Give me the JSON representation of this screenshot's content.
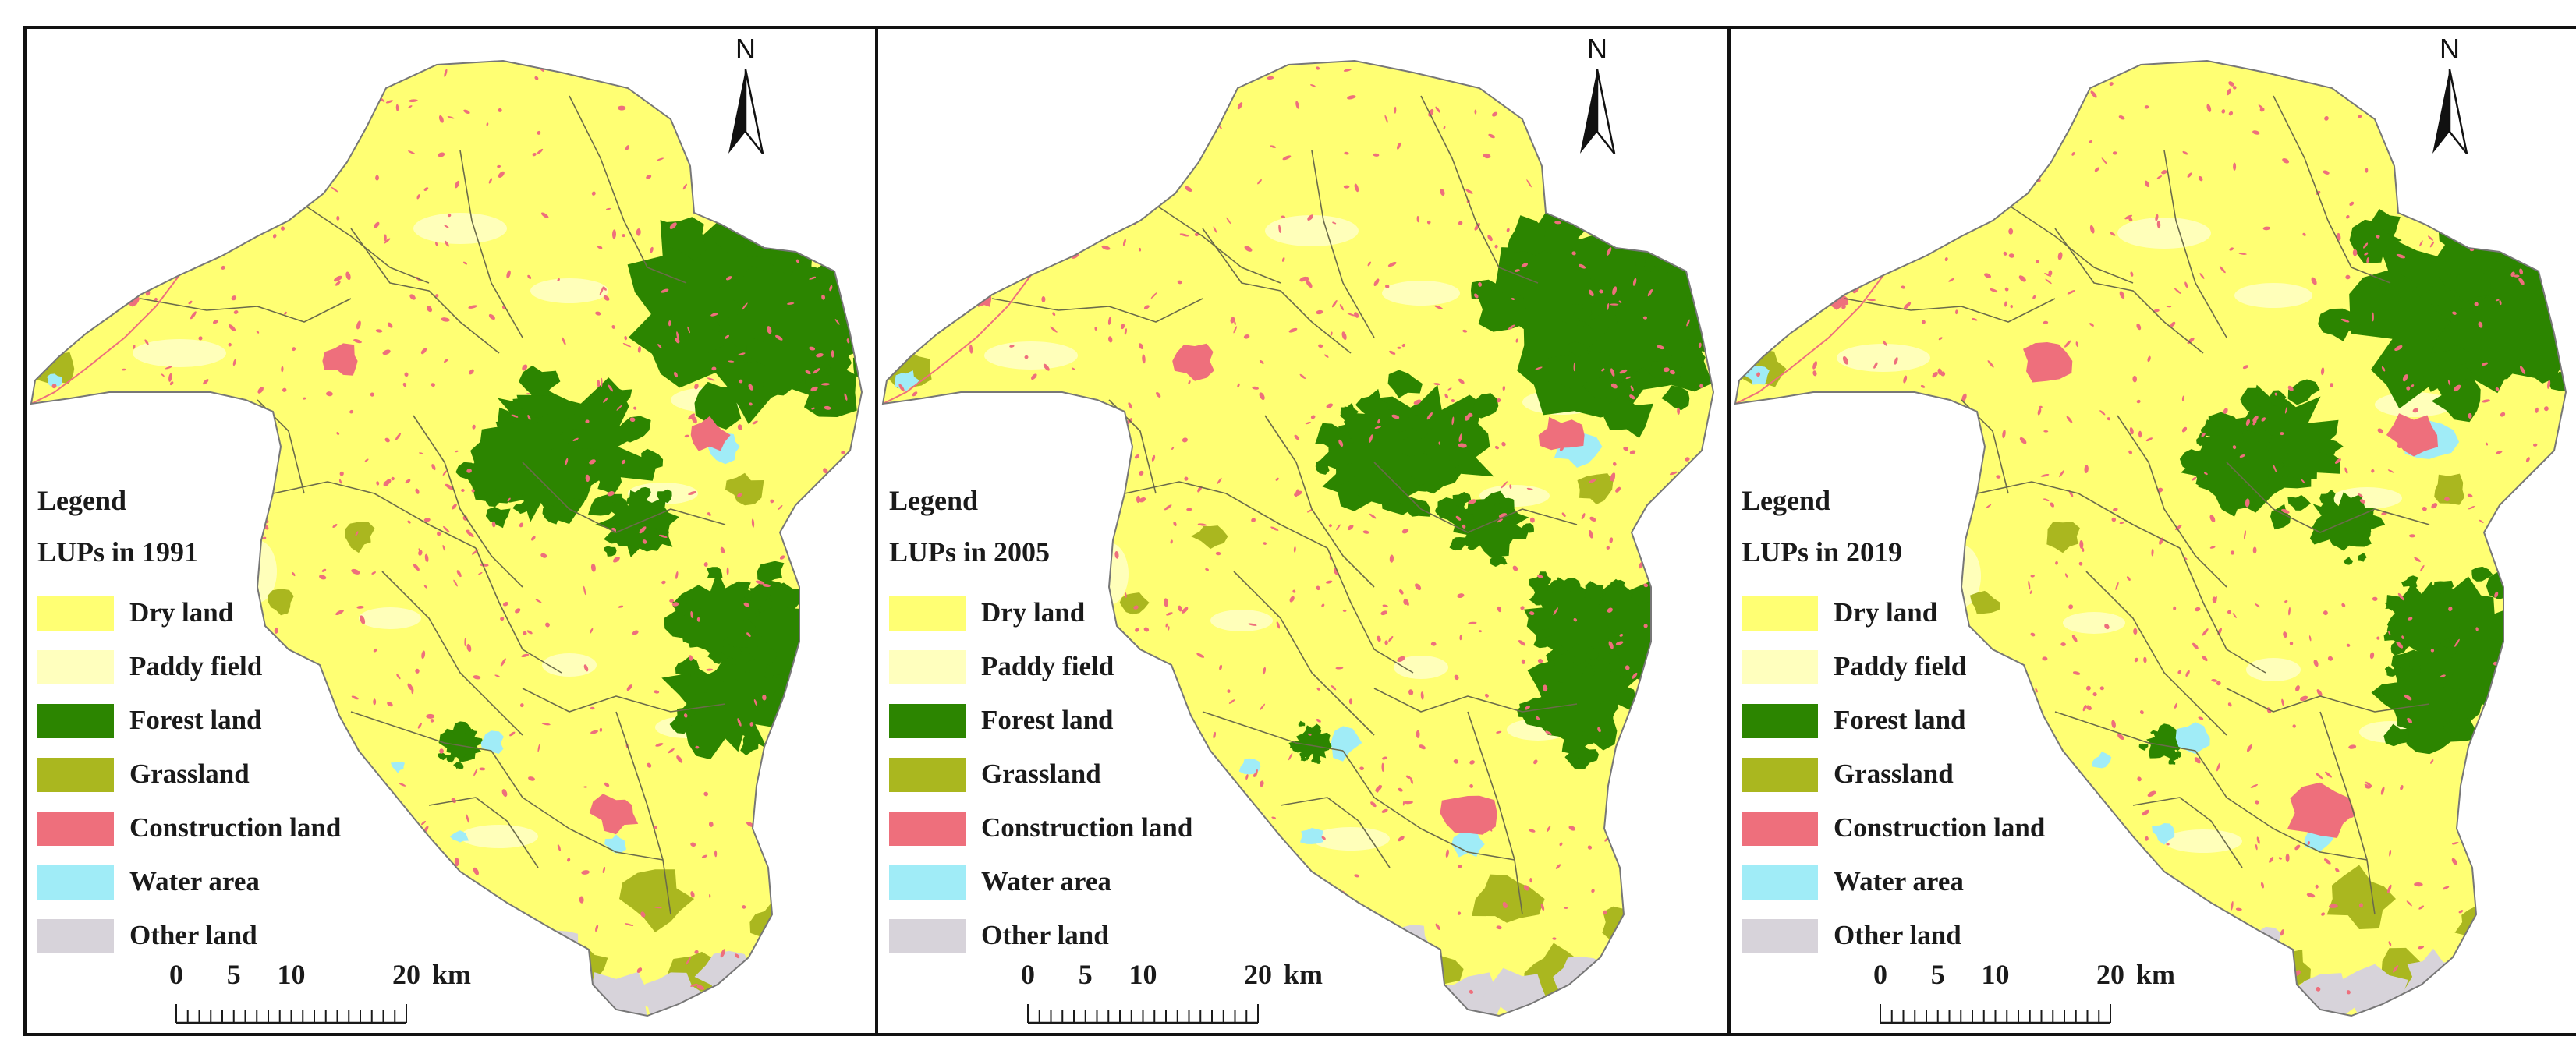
{
  "legend_title": "Legend",
  "panels": [
    {
      "year": 1991,
      "subtitle": "LUPs in 1991"
    },
    {
      "year": 2005,
      "subtitle": "LUPs in 2005"
    },
    {
      "year": 2019,
      "subtitle": "LUPs in 2019"
    }
  ],
  "legend_items": [
    {
      "label": "Dry land",
      "color": "#ffff73"
    },
    {
      "label": "Paddy field",
      "color": "#ffffbe"
    },
    {
      "label": "Forest land",
      "color": "#2c8500"
    },
    {
      "label": "Grassland",
      "color": "#aab71f"
    },
    {
      "label": "Construction land",
      "color": "#ee6f7c"
    },
    {
      "label": "Water area",
      "color": "#a0ecf7"
    },
    {
      "label": "Other land",
      "color": "#d7d3da"
    }
  ],
  "north_arrow": {
    "label": "N"
  },
  "scale_bar": {
    "tick_labels": [
      "0",
      "5",
      "10",
      "20"
    ],
    "unit": "km"
  },
  "colors": {
    "frame": "#111111",
    "boundary": "#6b6b4a",
    "outline": "#777777"
  }
}
